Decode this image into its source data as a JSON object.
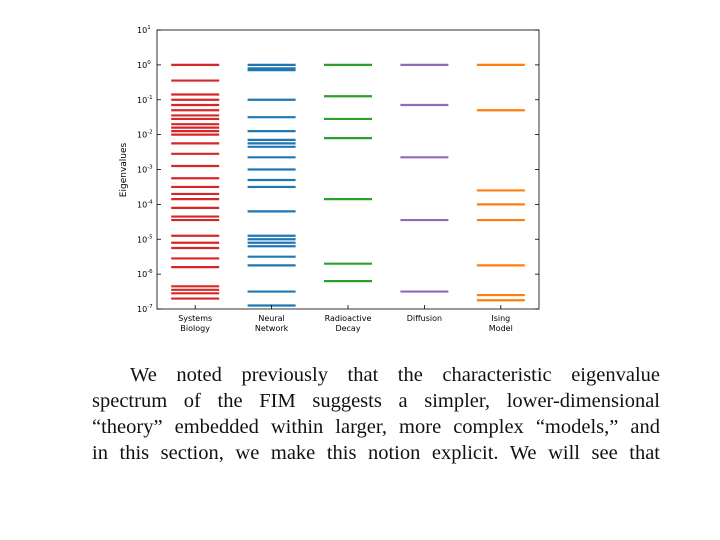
{
  "chart_data": {
    "type": "eigenvalue-spectrum",
    "ylabel": "Eigenvalues",
    "yscale": "log",
    "ylim_exponent": [
      -7,
      1
    ],
    "yticks": [
      {
        "base": "10",
        "exp": "1",
        "value": 1
      },
      {
        "base": "10",
        "exp": "0",
        "value": 0
      },
      {
        "base": "10",
        "exp": "-1",
        "value": -1
      },
      {
        "base": "10",
        "exp": "-2",
        "value": -2
      },
      {
        "base": "10",
        "exp": "-3",
        "value": -3
      },
      {
        "base": "10",
        "exp": "-4",
        "value": -4
      },
      {
        "base": "10",
        "exp": "-5",
        "value": -5
      },
      {
        "base": "10",
        "exp": "-6",
        "value": -6
      },
      {
        "base": "10",
        "exp": "-7",
        "value": -7
      }
    ],
    "grid": false,
    "series": [
      {
        "label_lines": [
          "Systems",
          "Biology"
        ],
        "color": "#d62728",
        "log10_values": [
          0.0,
          -0.45,
          -0.85,
          -1.0,
          -1.15,
          -1.3,
          -1.45,
          -1.55,
          -1.7,
          -1.8,
          -1.9,
          -2.0,
          -2.25,
          -2.55,
          -2.9,
          -3.25,
          -3.5,
          -3.7,
          -3.85,
          -4.1,
          -4.35,
          -4.45,
          -4.9,
          -5.1,
          -5.25,
          -5.55,
          -5.8,
          -6.35,
          -6.45,
          -6.55,
          -6.7
        ]
      },
      {
        "label_lines": [
          "Neural",
          "Network"
        ],
        "color": "#1f77b4",
        "log10_values": [
          0.0,
          -0.1,
          -0.15,
          -1.0,
          -1.5,
          -1.9,
          -2.15,
          -2.25,
          -2.35,
          -2.65,
          -3.0,
          -3.3,
          -3.5,
          -4.2,
          -4.9,
          -5.0,
          -5.1,
          -5.2,
          -5.5,
          -5.75,
          -6.5,
          -6.9
        ]
      },
      {
        "label_lines": [
          "Radioactive",
          "Decay"
        ],
        "color": "#2ca02c",
        "log10_values": [
          0.0,
          -0.9,
          -1.55,
          -2.1,
          -3.85,
          -5.7,
          -6.2
        ]
      },
      {
        "label_lines": [
          "Diffusion"
        ],
        "color": "#9467bd",
        "log10_values": [
          0.0,
          -1.15,
          -2.65,
          -4.45,
          -6.5
        ]
      },
      {
        "label_lines": [
          "Ising",
          "Model"
        ],
        "color": "#ff7f0e",
        "log10_values": [
          0.0,
          -1.3,
          -3.6,
          -4.0,
          -4.45,
          -5.75,
          -6.6,
          -6.75
        ]
      }
    ]
  },
  "paragraph": {
    "lines": [
      "We noted previously that the characteristic eigenvalue",
      "spectrum of the FIM suggests a simpler, lower-dimensional",
      "“theory” embedded within larger, more complex “models,” and",
      "in this section, we make this notion explicit. We will see that"
    ]
  }
}
